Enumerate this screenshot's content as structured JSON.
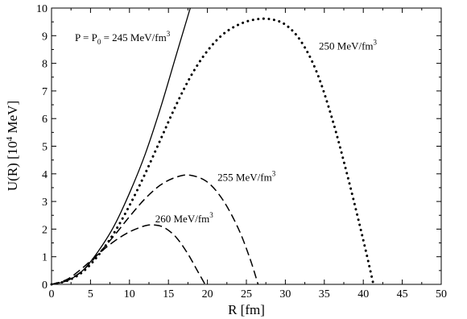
{
  "chart_data": {
    "type": "line",
    "xlabel": "R [fm]",
    "ylabel": "U(R) [10⁴ MeV]",
    "xlim": [
      0,
      50
    ],
    "ylim": [
      0,
      10
    ],
    "x_ticks": [
      0,
      5,
      10,
      15,
      20,
      25,
      30,
      35,
      40,
      45,
      50
    ],
    "y_ticks": [
      0,
      1,
      2,
      3,
      4,
      5,
      6,
      7,
      8,
      9,
      10
    ],
    "grid": false,
    "series": [
      {
        "name": "P = P₀ = 245 MeV/fm³",
        "style": "solid",
        "x": [
          0,
          2,
          4,
          6,
          8,
          10,
          12,
          14,
          16,
          17.8
        ],
        "y": [
          0,
          0.13,
          0.5,
          1.2,
          2.1,
          3.3,
          4.7,
          6.4,
          8.3,
          10
        ]
      },
      {
        "name": "250 MeV/fm³",
        "style": "dotted",
        "x": [
          0,
          2,
          4,
          6,
          8,
          10,
          12,
          14,
          16,
          18,
          20,
          22,
          24,
          26,
          28,
          30,
          32,
          34,
          36,
          38,
          40,
          41.3
        ],
        "y": [
          0,
          0.13,
          0.45,
          1.05,
          1.85,
          2.85,
          4.0,
          5.25,
          6.5,
          7.6,
          8.45,
          9.05,
          9.4,
          9.58,
          9.6,
          9.4,
          8.8,
          7.7,
          6.0,
          3.9,
          1.6,
          0
        ]
      },
      {
        "name": "255 MeV/fm³",
        "style": "dashed",
        "x": [
          0,
          2,
          4,
          6,
          8,
          10,
          12,
          14,
          16,
          17.8,
          20,
          22,
          24,
          25.5,
          26.5
        ],
        "y": [
          0,
          0.15,
          0.5,
          1.1,
          1.75,
          2.45,
          3.1,
          3.6,
          3.88,
          3.95,
          3.7,
          3.05,
          2.0,
          0.9,
          0
        ]
      },
      {
        "name": "260 MeV/fm³",
        "style": "dashed",
        "x": [
          0,
          2,
          4,
          6,
          8,
          10,
          12,
          13.2,
          14.5,
          16,
          17.5,
          18.7,
          19.7
        ],
        "y": [
          0,
          0.18,
          0.6,
          1.1,
          1.55,
          1.9,
          2.12,
          2.15,
          2.05,
          1.7,
          1.1,
          0.5,
          0
        ]
      }
    ],
    "annotations": [
      {
        "x": 3,
        "y": 8.8,
        "parts": [
          "P = P",
          "0",
          " = 245 MeV/fm",
          "3"
        ]
      },
      {
        "x": 34.3,
        "y": 8.5,
        "parts": [
          "250 MeV/fm",
          "3"
        ]
      },
      {
        "x": 21.3,
        "y": 3.75,
        "parts": [
          "255 MeV/fm",
          "3"
        ]
      },
      {
        "x": 13.3,
        "y": 2.25,
        "parts": [
          "260 MeV/fm",
          "3"
        ]
      }
    ]
  }
}
